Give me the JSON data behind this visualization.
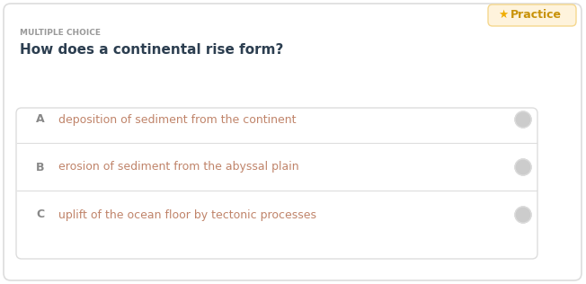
{
  "bg_color": "#ffffff",
  "outer_border_color": "#dddddd",
  "label_multiple_choice": "MULTIPLE CHOICE",
  "label_color": "#999999",
  "question": "How does a continental rise form?",
  "question_color": "#2c3e50",
  "options": [
    {
      "letter": "A",
      "text": "deposition of sediment from the continent"
    },
    {
      "letter": "B",
      "text": "erosion of sediment from the abyssal plain"
    },
    {
      "letter": "C",
      "text": "uplift of the ocean floor by tectonic processes"
    }
  ],
  "option_letter_color": "#888888",
  "option_text_color": "#c0846a",
  "option_box_bg": "#ffffff",
  "option_box_border": "#dddddd",
  "option_radio_color": "#cccccc",
  "practice_bg": "#fef3dc",
  "practice_text": "Practice",
  "practice_text_color": "#c8920a",
  "practice_star_color": "#f0ad00",
  "practice_border": "#f5d78e"
}
